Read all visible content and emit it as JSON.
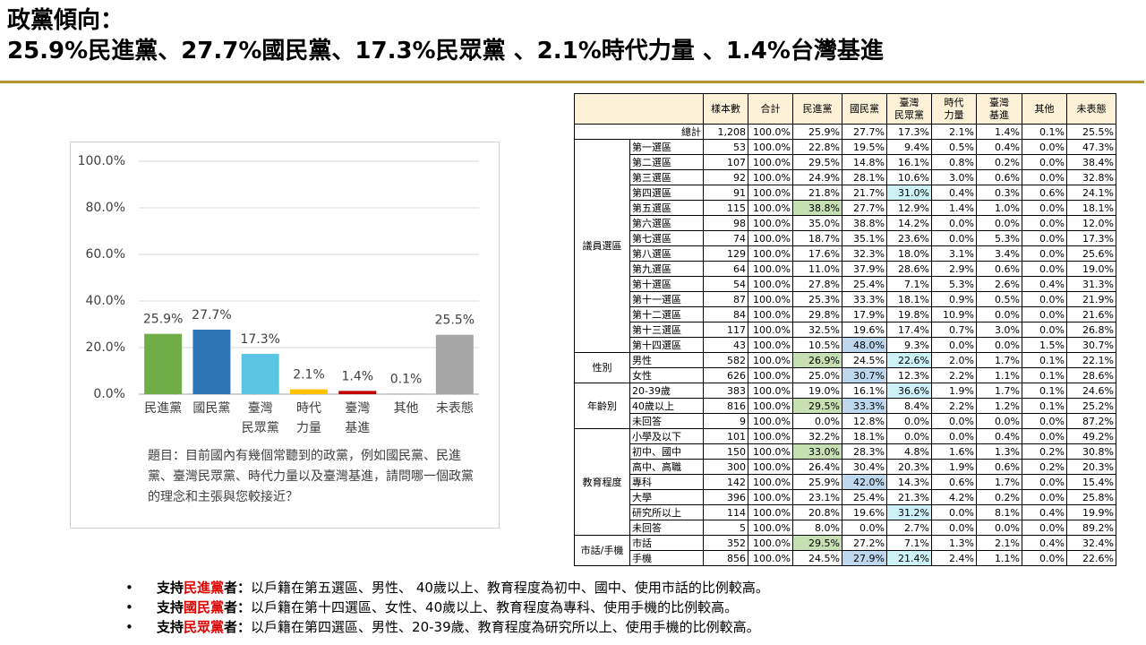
{
  "header": {
    "title": "政黨傾向：",
    "subtitle": "25.9%民進黨、27.7%國民黨、17.3%民眾黨 、2.1%時代力量 、1.4%台灣基進"
  },
  "chart_data": {
    "type": "bar",
    "categories": [
      "民進黨",
      "國民黨",
      "臺灣\n民眾黨",
      "時代\n力量",
      "臺灣\n基進",
      "其他",
      "未表態"
    ],
    "values": [
      25.9,
      27.7,
      17.3,
      2.1,
      1.4,
      0.1,
      25.5
    ],
    "value_labels": [
      "25.9%",
      "27.7%",
      "17.3%",
      "2.1%",
      "1.4%",
      "0.1%",
      "25.5%"
    ],
    "colors": [
      "#70ad47",
      "#2e75b6",
      "#5bc6e3",
      "#ffc000",
      "#c00000",
      "#7f7f7f",
      "#a5a5a5"
    ],
    "ylim": [
      0,
      100
    ],
    "yticks": [
      {
        "value": 0,
        "label": "0.0%"
      },
      {
        "value": 20,
        "label": "20.0%"
      },
      {
        "value": 40,
        "label": "40.0%"
      },
      {
        "value": 60,
        "label": "60.0%"
      },
      {
        "value": 80,
        "label": "80.0%"
      },
      {
        "value": 100,
        "label": "100.0%"
      }
    ],
    "grid": true,
    "note": "題目：目前國內有幾個常聽到的政黨，例如國民黨、民進黨、臺灣民眾黨、時代力量以及臺灣基進，請問哪一個政黨的理念和主張與您較接近？"
  },
  "table": {
    "columns": [
      "樣本數",
      "合計",
      "民進黨",
      "國民黨",
      "臺灣\n民眾黨",
      "時代\n力量",
      "臺灣\n基進",
      "其他",
      "未表態"
    ],
    "total": {
      "label": "總計",
      "cells": [
        "1,208",
        "100.0%",
        "25.9%",
        "27.7%",
        "17.3%",
        "2.1%",
        "1.4%",
        "0.1%",
        "25.5%"
      ]
    },
    "groups": [
      {
        "label": "議員選區",
        "rows": [
          {
            "label": "第一選區",
            "cells": [
              "53",
              "100.0%",
              "22.8%",
              "19.5%",
              "9.4%",
              "0.5%",
              "0.4%",
              "0.0%",
              "47.3%"
            ]
          },
          {
            "label": "第二選區",
            "cells": [
              "107",
              "100.0%",
              "29.5%",
              "14.8%",
              "16.1%",
              "0.8%",
              "0.2%",
              "0.0%",
              "38.4%"
            ]
          },
          {
            "label": "第三選區",
            "cells": [
              "92",
              "100.0%",
              "24.9%",
              "28.1%",
              "10.6%",
              "3.0%",
              "0.6%",
              "0.0%",
              "32.8%"
            ]
          },
          {
            "label": "第四選區",
            "cells": [
              "91",
              "100.0%",
              "21.8%",
              "21.7%",
              "31.0%",
              "0.4%",
              "0.3%",
              "0.6%",
              "24.1%"
            ],
            "highlight": [
              4
            ]
          },
          {
            "label": "第五選區",
            "cells": [
              "115",
              "100.0%",
              "38.8%",
              "27.7%",
              "12.9%",
              "1.4%",
              "1.0%",
              "0.0%",
              "18.1%"
            ],
            "highlight": [
              2
            ]
          },
          {
            "label": "第六選區",
            "cells": [
              "98",
              "100.0%",
              "35.0%",
              "38.8%",
              "14.2%",
              "0.0%",
              "0.0%",
              "0.0%",
              "12.0%"
            ]
          },
          {
            "label": "第七選區",
            "cells": [
              "74",
              "100.0%",
              "18.7%",
              "35.1%",
              "23.6%",
              "0.0%",
              "5.3%",
              "0.0%",
              "17.3%"
            ]
          },
          {
            "label": "第八選區",
            "cells": [
              "129",
              "100.0%",
              "17.6%",
              "32.3%",
              "18.0%",
              "3.1%",
              "3.4%",
              "0.0%",
              "25.6%"
            ]
          },
          {
            "label": "第九選區",
            "cells": [
              "64",
              "100.0%",
              "11.0%",
              "37.9%",
              "28.6%",
              "2.9%",
              "0.6%",
              "0.0%",
              "19.0%"
            ]
          },
          {
            "label": "第十選區",
            "cells": [
              "54",
              "100.0%",
              "27.8%",
              "25.4%",
              "7.1%",
              "5.3%",
              "2.6%",
              "0.4%",
              "31.3%"
            ]
          },
          {
            "label": "第十一選區",
            "cells": [
              "87",
              "100.0%",
              "25.3%",
              "33.3%",
              "18.1%",
              "0.9%",
              "0.5%",
              "0.0%",
              "21.9%"
            ]
          },
          {
            "label": "第十二選區",
            "cells": [
              "84",
              "100.0%",
              "29.8%",
              "17.9%",
              "19.8%",
              "10.9%",
              "0.0%",
              "0.0%",
              "21.6%"
            ]
          },
          {
            "label": "第十三選區",
            "cells": [
              "117",
              "100.0%",
              "32.5%",
              "19.6%",
              "17.4%",
              "0.7%",
              "3.0%",
              "0.0%",
              "26.8%"
            ]
          },
          {
            "label": "第十四選區",
            "cells": [
              "43",
              "100.0%",
              "10.5%",
              "48.0%",
              "9.3%",
              "0.0%",
              "0.0%",
              "1.5%",
              "30.7%"
            ],
            "highlight": [
              3
            ]
          }
        ]
      },
      {
        "label": "性別",
        "rows": [
          {
            "label": "男性",
            "cells": [
              "582",
              "100.0%",
              "26.9%",
              "24.5%",
              "22.6%",
              "2.0%",
              "1.7%",
              "0.1%",
              "22.1%"
            ],
            "highlight": [
              2,
              4
            ]
          },
          {
            "label": "女性",
            "cells": [
              "626",
              "100.0%",
              "25.0%",
              "30.7%",
              "12.3%",
              "2.2%",
              "1.1%",
              "0.1%",
              "28.6%"
            ],
            "highlight": [
              3
            ]
          }
        ]
      },
      {
        "label": "年齡別",
        "rows": [
          {
            "label": "20-39歲",
            "cells": [
              "383",
              "100.0%",
              "19.0%",
              "16.1%",
              "36.6%",
              "1.9%",
              "1.7%",
              "0.1%",
              "24.6%"
            ],
            "highlight": [
              4
            ]
          },
          {
            "label": "40歲以上",
            "cells": [
              "816",
              "100.0%",
              "29.5%",
              "33.3%",
              "8.4%",
              "2.2%",
              "1.2%",
              "0.1%",
              "25.2%"
            ],
            "highlight": [
              2,
              3
            ]
          },
          {
            "label": "未回答",
            "cells": [
              "9",
              "100.0%",
              "0.0%",
              "12.8%",
              "0.0%",
              "0.0%",
              "0.0%",
              "0.0%",
              "87.2%"
            ]
          }
        ]
      },
      {
        "label": "教育程度",
        "rows": [
          {
            "label": "小學及以下",
            "cells": [
              "101",
              "100.0%",
              "32.2%",
              "18.1%",
              "0.0%",
              "0.0%",
              "0.4%",
              "0.0%",
              "49.2%"
            ]
          },
          {
            "label": "初中、國中",
            "cells": [
              "150",
              "100.0%",
              "33.0%",
              "28.3%",
              "4.8%",
              "1.6%",
              "1.3%",
              "0.2%",
              "30.8%"
            ],
            "highlight": [
              2
            ]
          },
          {
            "label": "高中、高職",
            "cells": [
              "300",
              "100.0%",
              "26.4%",
              "30.4%",
              "20.3%",
              "1.9%",
              "0.6%",
              "0.2%",
              "20.3%"
            ]
          },
          {
            "label": "專科",
            "cells": [
              "142",
              "100.0%",
              "25.9%",
              "42.0%",
              "14.3%",
              "0.6%",
              "1.7%",
              "0.0%",
              "15.4%"
            ],
            "highlight": [
              3
            ]
          },
          {
            "label": "大學",
            "cells": [
              "396",
              "100.0%",
              "23.1%",
              "25.4%",
              "21.3%",
              "4.2%",
              "0.2%",
              "0.0%",
              "25.8%"
            ]
          },
          {
            "label": "研究所以上",
            "cells": [
              "114",
              "100.0%",
              "20.8%",
              "19.6%",
              "31.2%",
              "0.0%",
              "8.1%",
              "0.4%",
              "19.9%"
            ],
            "highlight": [
              4
            ]
          },
          {
            "label": "未回答",
            "cells": [
              "5",
              "100.0%",
              "8.0%",
              "0.0%",
              "2.7%",
              "0.0%",
              "0.0%",
              "0.0%",
              "89.2%"
            ]
          }
        ]
      },
      {
        "label": "市話/手機",
        "rows": [
          {
            "label": "市話",
            "cells": [
              "352",
              "100.0%",
              "29.5%",
              "27.2%",
              "7.1%",
              "1.3%",
              "2.1%",
              "0.4%",
              "32.4%"
            ],
            "highlight": [
              2
            ]
          },
          {
            "label": "手機",
            "cells": [
              "856",
              "100.0%",
              "24.5%",
              "27.9%",
              "21.4%",
              "2.4%",
              "1.1%",
              "0.0%",
              "22.6%"
            ],
            "highlight": [
              3,
              4
            ]
          }
        ]
      }
    ]
  },
  "notes": [
    {
      "lead": "支持",
      "party": "民進黨",
      "tail": "者：",
      "text": "以戶籍在第五選區、男性、 40歲以上、教育程度為初中、國中、使用市話的比例較高。"
    },
    {
      "lead": "支持",
      "party": "國民黨",
      "tail": "者：",
      "text": "以戶籍在第十四選區、女性、40歲以上、教育程度為專科、使用手機的比例較高。"
    },
    {
      "lead": "支持",
      "party": "民眾黨",
      "tail": "者：",
      "text": "以戶籍在第四選區、男性、20-39歲、教育程度為研究所以上、使用手機的比例較高。"
    }
  ]
}
